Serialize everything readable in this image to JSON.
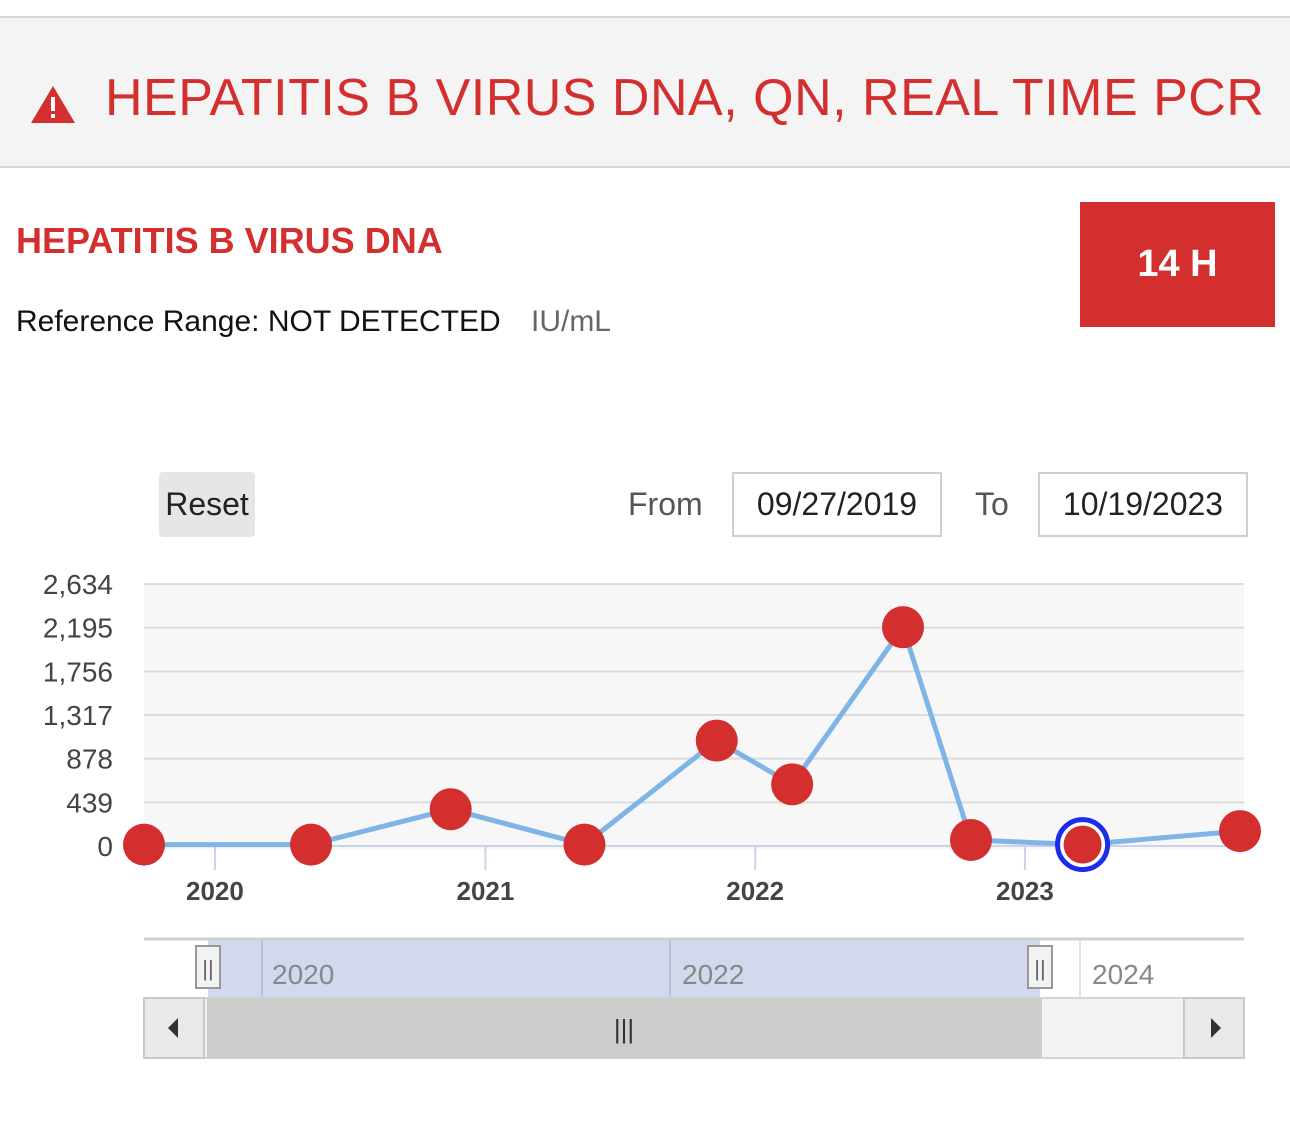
{
  "header": {
    "title": "HEPATITIS B VIRUS DNA, QN, REAL TIME PCR",
    "icon": "warning-icon",
    "color": "#d32f2f"
  },
  "test": {
    "name": "HEPATITIS B VIRUS DNA",
    "reference_label": "Reference Range:",
    "reference_range": "NOT DETECTED",
    "units": "IU/mL",
    "result": "14 H"
  },
  "controls": {
    "reset_label": "Reset",
    "from_label": "From",
    "from_value": "09/27/2019",
    "to_label": "To",
    "to_value": "10/19/2023"
  },
  "navigator": {
    "labels": [
      "2020",
      "2022",
      "2024"
    ],
    "handle_glyph": "||",
    "thumb_glyph": "|||",
    "left_arrow": "◀",
    "right_arrow": "▶"
  },
  "chart_data": {
    "type": "line",
    "ylim": [
      0,
      2634
    ],
    "y_ticks": [
      "2,634",
      "2,195",
      "1,756",
      "1,317",
      "878",
      "439",
      "0"
    ],
    "x_ticks": [
      "2020",
      "2021",
      "2022",
      "2023"
    ],
    "xlim": [
      "2019-09-27",
      "2023-10-19"
    ],
    "series": [
      {
        "points": [
          {
            "x": "2019-09-27",
            "y": 14
          },
          {
            "x": "2020-05-10",
            "y": 14
          },
          {
            "x": "2020-11-15",
            "y": 370
          },
          {
            "x": "2021-05-15",
            "y": 14
          },
          {
            "x": "2021-11-10",
            "y": 1060
          },
          {
            "x": "2022-02-20",
            "y": 620
          },
          {
            "x": "2022-07-20",
            "y": 2200
          },
          {
            "x": "2022-10-20",
            "y": 60
          },
          {
            "x": "2023-03-20",
            "y": 14
          },
          {
            "x": "2023-10-19",
            "y": 150
          }
        ],
        "selected_index": 8,
        "line_color": "#7fb5e6",
        "marker_color": "#d32f2f",
        "selected_color": "#1a2ee8"
      }
    ],
    "grid": true
  }
}
